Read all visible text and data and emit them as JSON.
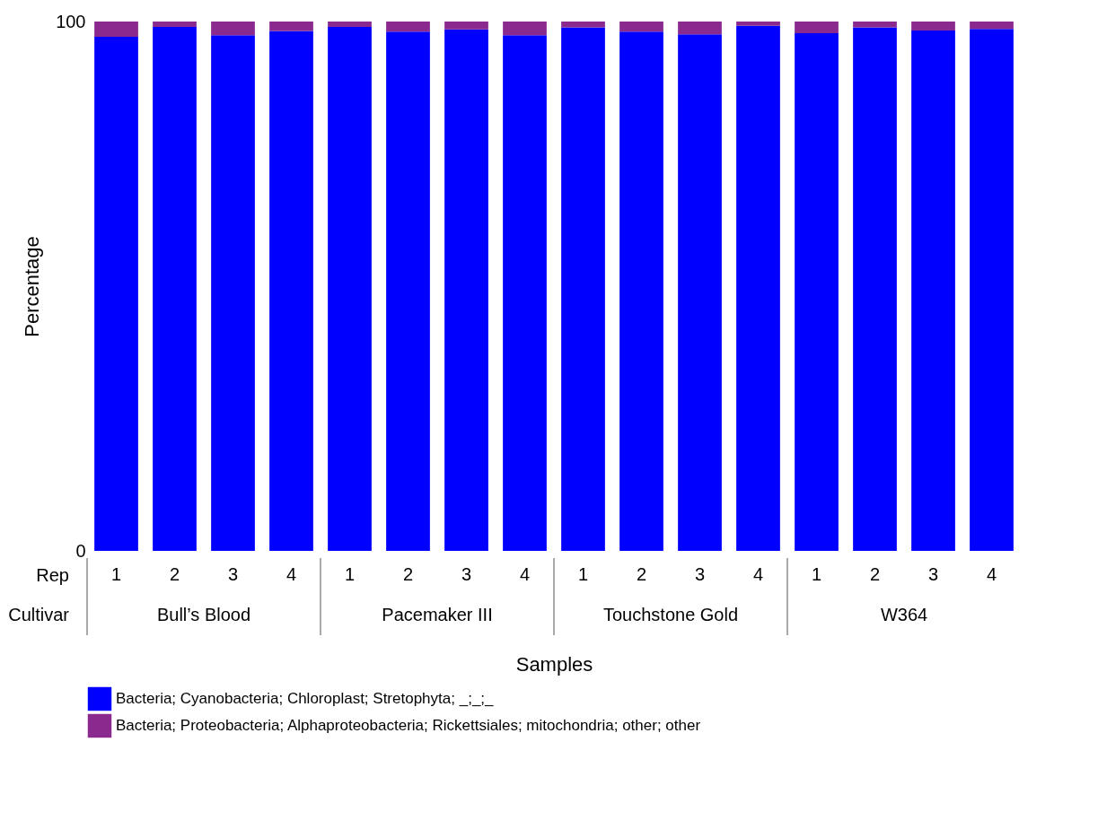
{
  "chart_data": {
    "type": "bar",
    "stacked": true,
    "xlabel": "Samples",
    "ylabel": "Percentage",
    "categories": [
      "1",
      "2",
      "3",
      "4",
      "1",
      "2",
      "3",
      "4",
      "1",
      "2",
      "3",
      "4",
      "1",
      "2",
      "3",
      "4"
    ],
    "series": [
      {
        "name": "Bacteria; Cyanobacteria; Chloroplast; Stretophyta; _;_;_",
        "color": "#0000ff",
        "values": [
          97.1,
          99.0,
          97.4,
          98.2,
          99.0,
          98.1,
          98.5,
          97.4,
          98.9,
          98.1,
          97.6,
          99.2,
          97.8,
          98.9,
          98.3,
          98.6
        ]
      },
      {
        "name": "Bacteria; Proteobacteria; Alphaproteobacteria; Rickettsiales; mitochondria; other; other",
        "color": "#8b2a8e",
        "values": [
          2.9,
          1.0,
          2.6,
          1.8,
          1.0,
          1.9,
          1.5,
          2.6,
          1.1,
          1.9,
          2.4,
          0.8,
          2.2,
          1.1,
          1.7,
          1.4
        ]
      }
    ],
    "ylim": [
      0,
      100
    ],
    "yticks": [
      0,
      100
    ],
    "legend": "bottom",
    "annotations": [
      "Rep",
      "Cultivar",
      "Bull’s Blood",
      "Pacemaker III",
      "Touchstone  Gold",
      "W364"
    ]
  }
}
